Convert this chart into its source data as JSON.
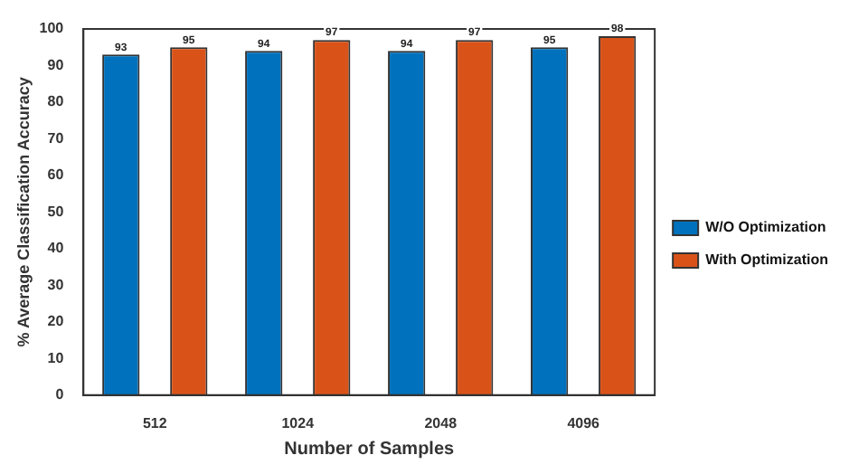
{
  "chart_data": {
    "type": "bar",
    "xlabel": "Number of Samples",
    "ylabel": "% Average Classification Accuracy",
    "categories": [
      "512",
      "1024",
      "2048",
      "4096"
    ],
    "series": [
      {
        "name": "W/O Optimization",
        "color": "#0072bd",
        "values": [
          93,
          94,
          94,
          95
        ]
      },
      {
        "name": "With Optimization",
        "color": "#d95319",
        "values": [
          95,
          97,
          97,
          98
        ]
      }
    ],
    "ylim": [
      0,
      100
    ],
    "yticks": [
      0,
      10,
      20,
      30,
      40,
      50,
      60,
      70,
      80,
      90,
      100
    ],
    "grid": false,
    "legend": "right",
    "data_labels": true
  }
}
